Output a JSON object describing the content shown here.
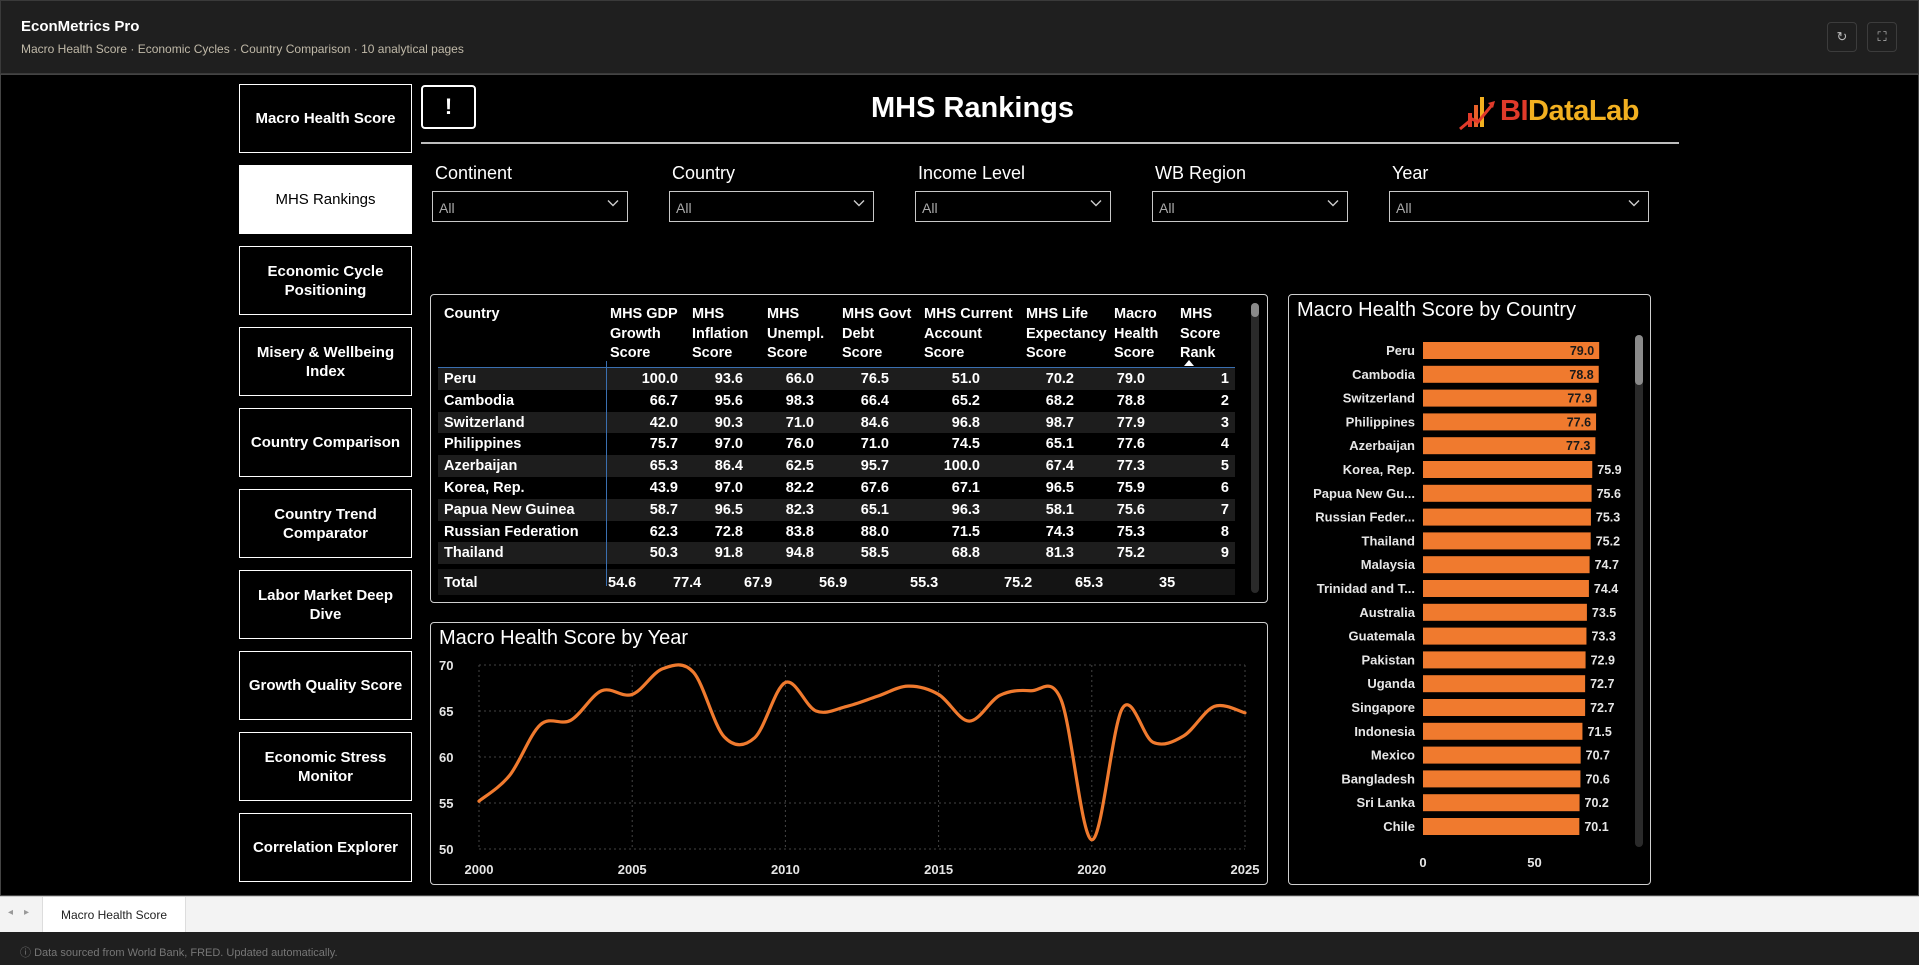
{
  "header": {
    "title": "EconMetrics Pro",
    "subtitle": "Macro Health Score · Economic Cycles · Country Comparison · 10 analytical pages",
    "refresh_icon": "↻",
    "fullscreen_icon": "⛶"
  },
  "nav": {
    "items": [
      {
        "label": "Macro Health Score",
        "active": false
      },
      {
        "label": "MHS Rankings",
        "active": true
      },
      {
        "label": "Economic Cycle Positioning",
        "active": false
      },
      {
        "label": "Misery & Wellbeing Index",
        "active": false
      },
      {
        "label": "Country Comparison",
        "active": false
      },
      {
        "label": "Country Trend Comparator",
        "active": false
      },
      {
        "label": "Labor Market Deep Dive",
        "active": false
      },
      {
        "label": "Growth Quality Score",
        "active": false
      },
      {
        "label": "Economic Stress Monitor",
        "active": false
      },
      {
        "label": "Correlation Explorer",
        "active": false
      }
    ]
  },
  "page": {
    "info_label": "!",
    "title": "MHS Rankings",
    "logo": {
      "part1": "BI",
      "part2": "DataLab"
    }
  },
  "slicers": [
    {
      "label": "Continent",
      "value": "All"
    },
    {
      "label": "Country",
      "value": "All"
    },
    {
      "label": "Income Level",
      "value": "All"
    },
    {
      "label": "WB Region",
      "value": "All"
    },
    {
      "label": "Year",
      "value": "All"
    }
  ],
  "table": {
    "headers": [
      "Country",
      "MHS GDP Growth Score",
      "MHS Inflation Score",
      "MHS Unempl. Score",
      "MHS Govt Debt Score",
      "MHS Current Account Score",
      "MHS Life Expectancy Score",
      "Macro Health Score",
      "MHS Score Rank"
    ],
    "rows": [
      [
        "Peru",
        "100.0",
        "93.6",
        "66.0",
        "76.5",
        "51.0",
        "70.2",
        "79.0",
        "1"
      ],
      [
        "Cambodia",
        "66.7",
        "95.6",
        "98.3",
        "66.4",
        "65.2",
        "68.2",
        "78.8",
        "2"
      ],
      [
        "Switzerland",
        "42.0",
        "90.3",
        "71.0",
        "84.6",
        "96.8",
        "98.7",
        "77.9",
        "3"
      ],
      [
        "Philippines",
        "75.7",
        "97.0",
        "76.0",
        "71.0",
        "74.5",
        "65.1",
        "77.6",
        "4"
      ],
      [
        "Azerbaijan",
        "65.3",
        "86.4",
        "62.5",
        "95.7",
        "100.0",
        "67.4",
        "77.3",
        "5"
      ],
      [
        "Korea, Rep.",
        "43.9",
        "97.0",
        "82.2",
        "67.6",
        "67.1",
        "96.5",
        "75.9",
        "6"
      ],
      [
        "Papua New Guinea",
        "58.7",
        "96.5",
        "82.3",
        "65.1",
        "96.3",
        "58.1",
        "75.6",
        "7"
      ],
      [
        "Russian Federation",
        "62.3",
        "72.8",
        "83.8",
        "88.0",
        "71.5",
        "74.3",
        "75.3",
        "8"
      ],
      [
        "Thailand",
        "50.3",
        "91.8",
        "94.8",
        "58.5",
        "68.8",
        "81.3",
        "75.2",
        "9"
      ]
    ],
    "total": [
      "Total",
      "54.6",
      "77.4",
      "67.9",
      "56.9",
      "55.3",
      "75.2",
      "65.3",
      "35"
    ]
  },
  "chart_data": [
    {
      "type": "line",
      "title": "Macro Health Score by Year",
      "xlabel": "",
      "ylabel": "",
      "x": [
        2000,
        2001,
        2002,
        2003,
        2004,
        2005,
        2006,
        2007,
        2008,
        2009,
        2010,
        2011,
        2012,
        2013,
        2014,
        2015,
        2016,
        2017,
        2018,
        2019,
        2020,
        2021,
        2022,
        2023,
        2024,
        2025
      ],
      "series": [
        {
          "values": [
            55.2,
            58.0,
            63.5,
            64.0,
            67.2,
            66.8,
            69.6,
            69.2,
            62.2,
            62.1,
            68.1,
            65.0,
            65.5,
            66.6,
            67.7,
            66.8,
            63.9,
            66.7,
            67.2,
            66.2,
            51.0,
            65.3,
            61.6,
            62.3,
            65.5,
            64.8
          ]
        }
      ],
      "xlim": [
        2000,
        2025
      ],
      "ylim": [
        50,
        70
      ],
      "x_ticks": [
        2000,
        2005,
        2010,
        2015,
        2020,
        2025
      ],
      "y_ticks": [
        50,
        55,
        60,
        65,
        70
      ],
      "color": "#f07a2e",
      "grid": true
    },
    {
      "type": "bar",
      "orientation": "horizontal",
      "title": "Macro Health Score by Country",
      "categories": [
        "Peru",
        "Cambodia",
        "Switzerland",
        "Philippines",
        "Azerbaijan",
        "Korea, Rep.",
        "Papua New Gu...",
        "Russian Feder...",
        "Thailand",
        "Malaysia",
        "Trinidad and T...",
        "Australia",
        "Guatemala",
        "Pakistan",
        "Uganda",
        "Singapore",
        "Indonesia",
        "Mexico",
        "Bangladesh",
        "Sri Lanka",
        "Chile"
      ],
      "values": [
        79.0,
        78.8,
        77.9,
        77.6,
        77.3,
        75.9,
        75.6,
        75.3,
        75.2,
        74.7,
        74.4,
        73.5,
        73.3,
        72.9,
        72.7,
        72.7,
        71.5,
        70.7,
        70.6,
        70.2,
        70.1
      ],
      "labels": [
        "79.0",
        "78.8",
        "77.9",
        "77.6",
        "77.3",
        "75.9",
        "75.6",
        "75.3",
        "75.2",
        "74.7",
        "74.4",
        "73.5",
        "73.3",
        "72.9",
        "72.7",
        "72.7",
        "71.5",
        "70.7",
        "70.6",
        "70.2",
        "70.1"
      ],
      "x_ticks": [
        0,
        50
      ],
      "color": "#f07a2e",
      "highlight_color": "#e0531a"
    }
  ],
  "tabs": {
    "prev_icon": "◂",
    "next_icon": "▸",
    "items": [
      {
        "label": "Macro Health Score"
      }
    ]
  },
  "footer": {
    "info_icon": "ⓘ",
    "text": "Data sourced from World Bank, FRED. Updated automatically."
  }
}
